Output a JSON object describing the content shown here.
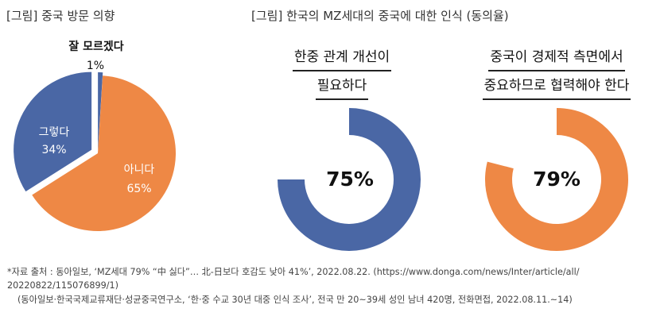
{
  "figures": {
    "left_title": "[그림] 중국 방문 의향",
    "right_title": "[그림] 한국의 MZ세대의 중국에 대한 인식 (동의율)"
  },
  "pie_labels": {
    "dontknow_name": "잘 모르겠다",
    "dontknow_value": "1%",
    "yes_name": "그렇다",
    "yes_value": "34%",
    "no_name": "아니다",
    "no_value": "65%"
  },
  "donut1": {
    "title_line1": "한중 관계 개선이",
    "title_line2": "필요하다",
    "value_label": "75%"
  },
  "donut2": {
    "title_line1": "중국이 경제적 측면에서",
    "title_line2": "중요하므로 협력해야 한다",
    "value_label": "79%"
  },
  "notes": {
    "line1": "*자료 출처 : 동아일보, ‘MZ세대 79% “中 싫다”… 北-日보다 호감도 낮아 41%’, 2022.08.22. (https://www.donga.com/news/Inter/article/all/",
    "line2": "20220822/115076899/1)",
    "line3": "(동아일보·한국국제교류재단·성균중국연구소, ‘한·중 수교 30년 대중 인식 조사’, 전국 만 20~39세 성인 남녀 420명, 전화면접, 2022.08.11.~14)"
  },
  "colors": {
    "orange": "#EE8845",
    "blue": "#4A67A5",
    "donut_track": "#ffffff"
  },
  "chart_data": [
    {
      "type": "pie",
      "title": "[그림] 중국 방문 의향",
      "categories": [
        "아니다",
        "그렇다",
        "잘 모르겠다"
      ],
      "values": [
        65,
        34,
        1
      ],
      "colors": [
        "#EE8845",
        "#4A67A5",
        "#4A67A5"
      ]
    },
    {
      "type": "pie",
      "title": "한중 관계 개선이 필요하다",
      "categories": [
        "동의"
      ],
      "values": [
        75
      ],
      "colors": [
        "#4A67A5"
      ]
    },
    {
      "type": "pie",
      "title": "중국이 경제적 측면에서 중요하므로 협력해야 한다",
      "categories": [
        "동의"
      ],
      "values": [
        79
      ],
      "colors": [
        "#EE8845"
      ]
    }
  ]
}
